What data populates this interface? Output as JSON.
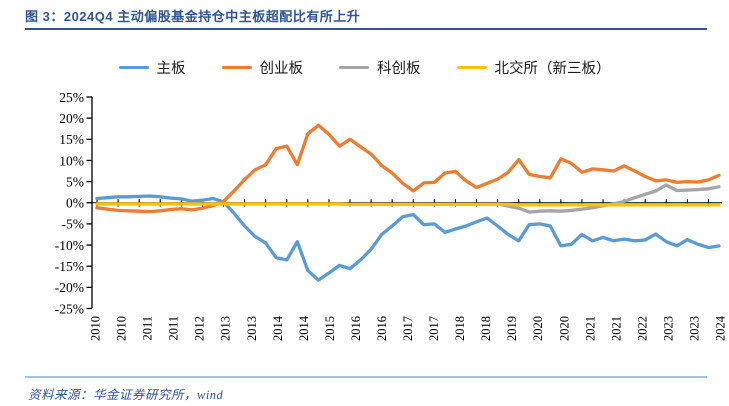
{
  "title": "图 3：2024Q4 主动偏股基金持仓中主板超配比有所上升",
  "source": "资料来源：华金证券研究所，wind",
  "colors": {
    "title_blue": "#2F5597",
    "rule_top": "#2F5597",
    "rule_bottom": "#9DC3E6",
    "axis_black": "#000000",
    "main_board": "#5B9BD5",
    "chinext": "#ED7D31",
    "star_market": "#A5A5A5",
    "bse": "#FFC000"
  },
  "legend": {
    "items": [
      {
        "label": "主板",
        "color": "#5B9BD5"
      },
      {
        "label": "创业板",
        "color": "#ED7D31"
      },
      {
        "label": "科创板",
        "color": "#A5A5A5"
      },
      {
        "label": "北交所（新三板）",
        "color": "#FFC000"
      }
    ]
  },
  "chart_data": {
    "type": "line",
    "title": "",
    "xlabel": "",
    "ylabel": "",
    "x_range": "2010Q1 to 2024Q4, quarterly (60 points)",
    "ylim": [
      -25,
      25
    ],
    "y_tick_step": 5,
    "y_tick_labels": [
      "25%",
      "20%",
      "15%",
      "10%",
      "5%",
      "0%",
      "-5%",
      "-10%",
      "-15%",
      "-20%",
      "-25%"
    ],
    "x_tick_labels": [
      "2010",
      "2010",
      "2011",
      "2011",
      "2012",
      "2013",
      "2013",
      "2014",
      "2014",
      "2015",
      "2016",
      "2016",
      "2017",
      "2017",
      "2018",
      "2018",
      "2019",
      "2020",
      "2020",
      "2021",
      "2021",
      "2022",
      "2023",
      "2023",
      "2024"
    ],
    "grid": false,
    "legend_position": "top",
    "series": [
      {
        "name": "主板",
        "color": "#5B9BD5",
        "values": [
          1.0,
          1.2,
          1.4,
          1.4,
          1.5,
          1.6,
          1.4,
          1.1,
          0.9,
          0.4,
          0.6,
          1.0,
          0.2,
          -2.5,
          -5.5,
          -8.0,
          -9.5,
          -13.0,
          -13.5,
          -9.2,
          -16.0,
          -18.3,
          -16.6,
          -14.8,
          -15.6,
          -13.5,
          -11.0,
          -7.5,
          -5.5,
          -3.3,
          -2.8,
          -5.2,
          -5.0,
          -7.0,
          -6.2,
          -5.5,
          -4.5,
          -3.6,
          -5.5,
          -7.5,
          -9.0,
          -5.2,
          -5.0,
          -5.5,
          -10.2,
          -9.8,
          -7.5,
          -9.0,
          -8.2,
          -9.0,
          -8.6,
          -9.0,
          -8.8,
          -7.4,
          -9.2,
          -10.2,
          -8.7,
          -9.8,
          -10.6,
          -10.2
        ]
      },
      {
        "name": "创业板",
        "color": "#ED7D31",
        "values": [
          -1.2,
          -1.5,
          -1.8,
          -1.9,
          -2.0,
          -2.1,
          -1.9,
          -1.6,
          -1.4,
          -1.7,
          -1.3,
          -0.7,
          0.3,
          2.8,
          5.5,
          7.8,
          9.0,
          12.8,
          13.4,
          9.0,
          16.3,
          18.3,
          16.2,
          13.4,
          15.0,
          13.2,
          11.5,
          8.8,
          7.0,
          4.6,
          2.8,
          4.7,
          4.8,
          7.0,
          7.4,
          5.2,
          3.6,
          4.6,
          5.6,
          7.2,
          10.2,
          6.7,
          6.2,
          5.9,
          10.4,
          9.3,
          7.2,
          8.0,
          7.8,
          7.5,
          8.7,
          7.5,
          6.2,
          5.2,
          5.4,
          4.8,
          5.0,
          4.9,
          5.4,
          6.5
        ]
      },
      {
        "name": "科创板",
        "color": "#A5A5A5",
        "values": [
          null,
          null,
          null,
          null,
          null,
          null,
          null,
          null,
          null,
          null,
          null,
          null,
          null,
          null,
          null,
          null,
          null,
          null,
          null,
          null,
          null,
          null,
          null,
          null,
          null,
          null,
          null,
          null,
          null,
          null,
          null,
          null,
          null,
          null,
          null,
          null,
          null,
          null,
          -0.3,
          -0.8,
          -1.3,
          -2.2,
          -2.0,
          -1.9,
          -2.0,
          -1.8,
          -1.5,
          -1.2,
          -0.7,
          -0.3,
          0.3,
          1.2,
          2.0,
          2.8,
          4.2,
          2.9,
          3.0,
          3.1,
          3.3,
          3.8
        ]
      },
      {
        "name": "北交所（新三板）",
        "color": "#FFC000",
        "values": [
          -0.3,
          -0.3,
          -0.3,
          -0.3,
          -0.3,
          -0.3,
          -0.3,
          -0.3,
          -0.3,
          -0.3,
          -0.3,
          -0.3,
          -0.3,
          -0.3,
          -0.3,
          -0.3,
          -0.3,
          -0.3,
          -0.3,
          -0.3,
          -0.3,
          -0.3,
          -0.3,
          -0.3,
          -0.4,
          -0.4,
          -0.4,
          -0.4,
          -0.4,
          -0.4,
          -0.4,
          -0.4,
          -0.4,
          -0.4,
          -0.4,
          -0.4,
          -0.4,
          -0.4,
          -0.4,
          -0.4,
          -0.5,
          -0.5,
          -0.5,
          -0.5,
          -0.5,
          -0.5,
          -0.5,
          -0.5,
          -0.5,
          -0.5,
          -0.5,
          -0.5,
          -0.5,
          -0.5,
          -0.5,
          -0.5,
          -0.5,
          -0.5,
          -0.5,
          -0.5
        ]
      }
    ]
  }
}
